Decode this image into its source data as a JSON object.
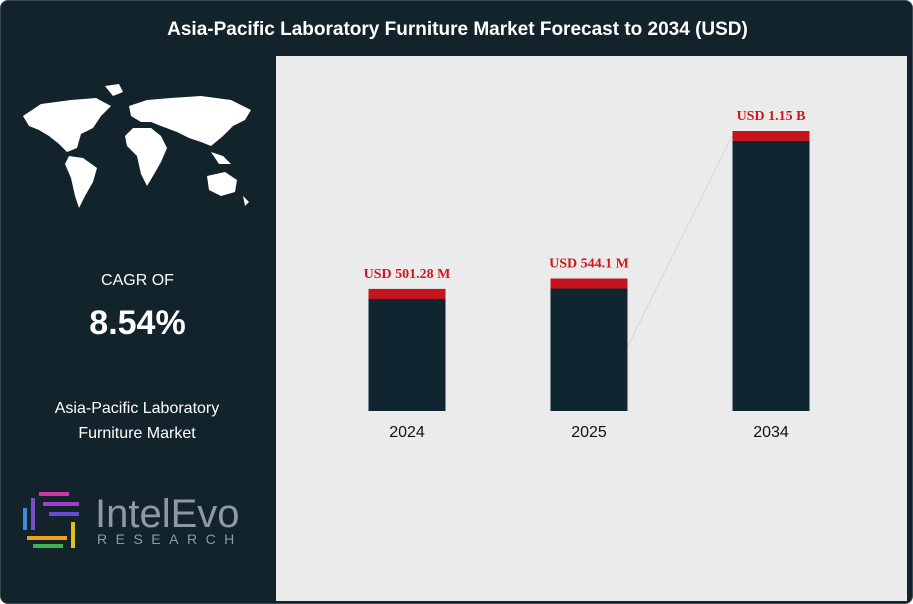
{
  "chart_data": {
    "type": "bar",
    "title": "Asia-Pacific Laboratory Furniture Market Forecast to 2034 (USD)",
    "categories": [
      "2024",
      "2025",
      "2034"
    ],
    "values": [
      501.28,
      544.1,
      1150
    ],
    "value_labels": [
      "USD 501.28 M",
      "USD 544.1 M",
      "USD 1.15 B"
    ],
    "color": "#0f2530",
    "cap_color": "#c4151c",
    "label_color": "#d0161c"
  },
  "panel": {
    "cagr_label": "CAGR OF",
    "cagr_value": "8.54%",
    "market_name": "Asia-Pacific Laboratory Furniture Market"
  },
  "logo": {
    "name": "IntelEvo",
    "subtitle": "RESEARCH"
  }
}
